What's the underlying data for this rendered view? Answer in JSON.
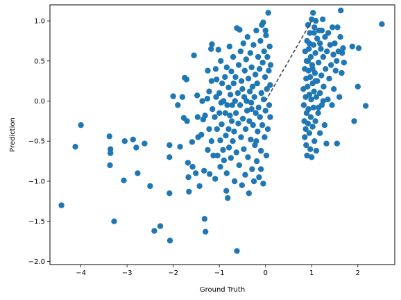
{
  "chart_data": {
    "type": "scatter",
    "title": "",
    "xlabel": "Ground Truth",
    "ylabel": "Prediction",
    "xlim": [
      -4.67,
      2.8
    ],
    "ylim": [
      -2.04,
      1.2
    ],
    "xticks": [
      -4,
      -3,
      -2,
      -1,
      0,
      1,
      2
    ],
    "yticks": [
      -2.0,
      -1.5,
      -1.0,
      -0.5,
      0.0,
      0.5,
      1.0
    ],
    "xtick_labels": [
      "−4",
      "−3",
      "−2",
      "−1",
      "0",
      "1",
      "2"
    ],
    "ytick_labels": [
      "−2.0",
      "−1.5",
      "−1.0",
      "−0.5",
      "0.0",
      "0.5",
      "1.0"
    ],
    "grid": false,
    "marker_color": "#1f77b4",
    "reference_line": {
      "x": [
        0,
        1
      ],
      "y": [
        0,
        1
      ],
      "style": "dashed",
      "color": "#444444"
    },
    "points": [
      [
        -4.42,
        -1.3
      ],
      [
        -4.12,
        -0.57
      ],
      [
        -4.0,
        -0.3
      ],
      [
        -3.38,
        -0.44
      ],
      [
        -3.36,
        -0.6
      ],
      [
        -3.36,
        -0.65
      ],
      [
        -3.37,
        -0.8
      ],
      [
        -3.28,
        -1.5
      ],
      [
        -3.07,
        -0.99
      ],
      [
        -3.05,
        -0.5
      ],
      [
        -2.87,
        -0.48
      ],
      [
        -2.8,
        -0.58
      ],
      [
        -2.77,
        -0.9
      ],
      [
        -2.62,
        -0.53
      ],
      [
        -2.5,
        -1.06
      ],
      [
        -2.41,
        -1.62
      ],
      [
        -2.28,
        -1.56
      ],
      [
        -2.08,
        -0.55
      ],
      [
        -2.08,
        -0.7
      ],
      [
        -2.08,
        -1.15
      ],
      [
        -2.07,
        -1.74
      ],
      [
        -2.0,
        0.06
      ],
      [
        -1.85,
        -0.57
      ],
      [
        -1.9,
        -0.05
      ],
      [
        -1.8,
        0.05
      ],
      [
        -1.77,
        -0.21
      ],
      [
        -1.75,
        0.29
      ],
      [
        -1.71,
        0.27
      ],
      [
        -1.7,
        -0.25
      ],
      [
        -1.68,
        -0.77
      ],
      [
        -1.67,
        -0.95
      ],
      [
        -1.66,
        -1.13
      ],
      [
        -1.59,
        -0.51
      ],
      [
        -1.58,
        -0.82
      ],
      [
        -1.55,
        0.57
      ],
      [
        -1.51,
        -0.9
      ],
      [
        -1.48,
        0.07
      ],
      [
        -1.47,
        -0.2
      ],
      [
        -1.46,
        -0.45
      ],
      [
        -1.43,
        -1.06
      ],
      [
        -1.39,
        -0.42
      ],
      [
        -1.37,
        0.0
      ],
      [
        -1.35,
        -0.23
      ],
      [
        -1.33,
        -0.87
      ],
      [
        -1.32,
        -1.47
      ],
      [
        -1.31,
        -0.18
      ],
      [
        -1.3,
        -1.63
      ],
      [
        -1.26,
        0.03
      ],
      [
        -1.25,
        0.38
      ],
      [
        -1.25,
        -0.61
      ],
      [
        -1.22,
        0.12
      ],
      [
        -1.22,
        -0.35
      ],
      [
        -1.21,
        -0.91
      ],
      [
        -1.18,
        0.65
      ],
      [
        -1.17,
        0.25
      ],
      [
        -1.17,
        -0.5
      ],
      [
        -1.16,
        0.71
      ],
      [
        -1.15,
        -0.1
      ],
      [
        -1.13,
        -0.68
      ],
      [
        -1.1,
        -0.2
      ],
      [
        -1.09,
        -0.97
      ],
      [
        -1.08,
        0.4
      ],
      [
        -1.07,
        0.05
      ],
      [
        -1.06,
        0.27
      ],
      [
        -1.05,
        -0.35
      ],
      [
        -1.04,
        -0.68
      ],
      [
        -1.02,
        0.64
      ],
      [
        -1.0,
        0.1
      ],
      [
        -1.0,
        -0.15
      ],
      [
        -0.98,
        -0.49
      ],
      [
        -0.98,
        -0.82
      ],
      [
        -0.97,
        0.5
      ],
      [
        -0.96,
        -0.02
      ],
      [
        -0.95,
        -0.29
      ],
      [
        -0.94,
        0.22
      ],
      [
        -0.92,
        -0.61
      ],
      [
        -0.91,
        0.0
      ],
      [
        -0.9,
        -0.74
      ],
      [
        -0.88,
        0.3
      ],
      [
        -0.87,
        -0.15
      ],
      [
        -0.86,
        -0.43
      ],
      [
        -0.85,
        -1.12
      ],
      [
        -0.84,
        0.42
      ],
      [
        -0.84,
        -0.9
      ],
      [
        -0.83,
        -0.05
      ],
      [
        -0.82,
        -1.21
      ],
      [
        -0.8,
        0.17
      ],
      [
        -0.8,
        -0.35
      ],
      [
        -0.79,
        -0.58
      ],
      [
        -0.78,
        0.68
      ],
      [
        -0.77,
        -0.18
      ],
      [
        -0.76,
        0.08
      ],
      [
        -0.75,
        -0.71
      ],
      [
        -0.74,
        0.37
      ],
      [
        -0.73,
        -0.25
      ],
      [
        -0.72,
        -0.05
      ],
      [
        -0.71,
        -0.5
      ],
      [
        -0.7,
        0.55
      ],
      [
        -0.69,
        0.22
      ],
      [
        -0.68,
        -0.38
      ],
      [
        -0.67,
        -1.0
      ],
      [
        -0.66,
        0.0
      ],
      [
        -0.65,
        0.3
      ],
      [
        -0.64,
        -0.15
      ],
      [
        -0.63,
        -0.64
      ],
      [
        -0.62,
        0.91
      ],
      [
        -0.62,
        -1.87
      ],
      [
        -0.6,
        0.1
      ],
      [
        -0.59,
        -0.28
      ],
      [
        -0.58,
        0.45
      ],
      [
        -0.57,
        -0.8
      ],
      [
        -0.56,
        0.89
      ],
      [
        -0.55,
        -0.05
      ],
      [
        -0.54,
        0.62
      ],
      [
        -0.53,
        -0.45
      ],
      [
        -0.52,
        0.25
      ],
      [
        -0.51,
        -1.05
      ],
      [
        -0.5,
        0.15
      ],
      [
        -0.49,
        -0.22
      ],
      [
        -0.48,
        0.72
      ],
      [
        -0.47,
        -0.6
      ],
      [
        -0.46,
        0.05
      ],
      [
        -0.45,
        0.38
      ],
      [
        -0.44,
        -0.92
      ],
      [
        -0.43,
        -0.35
      ],
      [
        -0.42,
        0.52
      ],
      [
        -0.41,
        0.0
      ],
      [
        -0.4,
        -0.12
      ],
      [
        -0.39,
        0.8
      ],
      [
        -0.38,
        -0.7
      ],
      [
        -0.37,
        0.28
      ],
      [
        -0.36,
        -1.15
      ],
      [
        -0.35,
        -0.25
      ],
      [
        -0.34,
        0.12
      ],
      [
        -0.33,
        0.6
      ],
      [
        -0.32,
        -0.48
      ],
      [
        -0.31,
        -0.02
      ],
      [
        -0.3,
        0.42
      ],
      [
        -0.29,
        -0.85
      ],
      [
        -0.28,
        0.18
      ],
      [
        -0.27,
        -0.3
      ],
      [
        -0.26,
        0.7
      ],
      [
        -0.25,
        -1.0
      ],
      [
        -0.24,
        0.05
      ],
      [
        -0.23,
        -0.55
      ],
      [
        -0.22,
        0.33
      ],
      [
        -0.21,
        -0.15
      ],
      [
        -0.2,
        0.88
      ],
      [
        -0.19,
        -0.75
      ],
      [
        -0.18,
        0.22
      ],
      [
        -0.17,
        -0.38
      ],
      [
        -0.16,
        0.55
      ],
      [
        -0.15,
        -0.08
      ],
      [
        -0.14,
        -0.95
      ],
      [
        -0.13,
        0.4
      ],
      [
        -0.12,
        -0.2
      ],
      [
        -0.11,
        0.75
      ],
      [
        -0.1,
        -0.62
      ],
      [
        -0.09,
        0.1
      ],
      [
        -0.08,
        0.95
      ],
      [
        -0.07,
        -0.3
      ],
      [
        -0.06,
        0.48
      ],
      [
        -0.05,
        -1.03
      ],
      [
        -0.04,
        0.02
      ],
      [
        -0.03,
        0.62
      ],
      [
        -0.02,
        -0.45
      ],
      [
        -0.01,
        0.3
      ],
      [
        0.0,
        -0.12
      ],
      [
        0.01,
        0.82
      ],
      [
        0.02,
        -0.68
      ],
      [
        0.03,
        0.15
      ],
      [
        0.04,
        0.55
      ],
      [
        0.05,
        -0.35
      ],
      [
        0.06,
        1.1
      ],
      [
        0.07,
        0.38
      ],
      [
        0.08,
        -0.05
      ],
      [
        0.09,
        0.68
      ],
      [
        0.1,
        0.2
      ],
      [
        0.1,
        -0.2
      ],
      [
        0.11,
        0.45
      ],
      [
        -0.05,
        0.98
      ],
      [
        0.0,
        0.88
      ],
      [
        -0.1,
        -0.85
      ],
      [
        -0.2,
        -0.5
      ],
      [
        -0.3,
        -0.1
      ],
      [
        0.82,
        0.15
      ],
      [
        0.83,
        -0.05
      ],
      [
        0.84,
        -0.25
      ],
      [
        0.85,
        0.4
      ],
      [
        0.85,
        -0.45
      ],
      [
        0.86,
        0.62
      ],
      [
        0.87,
        0.05
      ],
      [
        0.87,
        -0.35
      ],
      [
        0.88,
        0.28
      ],
      [
        0.88,
        -0.55
      ],
      [
        0.89,
        0.5
      ],
      [
        0.89,
        -0.15
      ],
      [
        0.9,
        0.75
      ],
      [
        0.9,
        -0.68
      ],
      [
        0.91,
        0.18
      ],
      [
        0.92,
        -0.28
      ],
      [
        0.92,
        0.95
      ],
      [
        0.93,
        0.38
      ],
      [
        0.93,
        -0.1
      ],
      [
        0.94,
        0.65
      ],
      [
        0.95,
        -0.4
      ],
      [
        0.95,
        0.08
      ],
      [
        0.96,
        0.85
      ],
      [
        0.97,
        0.3
      ],
      [
        0.97,
        -0.6
      ],
      [
        0.98,
        -0.2
      ],
      [
        0.98,
        0.55
      ],
      [
        0.99,
        0.02
      ],
      [
        1.0,
        1.02
      ],
      [
        1.0,
        -0.7
      ],
      [
        1.01,
        0.45
      ],
      [
        1.02,
        -0.32
      ],
      [
        1.02,
        0.22
      ],
      [
        1.03,
        1.1
      ],
      [
        1.04,
        0.7
      ],
      [
        1.04,
        -0.08
      ],
      [
        1.05,
        0.12
      ],
      [
        1.06,
        -0.5
      ],
      [
        1.06,
        0.92
      ],
      [
        1.07,
        0.35
      ],
      [
        1.08,
        -0.25
      ],
      [
        1.08,
        0.6
      ],
      [
        1.09,
        1.0
      ],
      [
        1.1,
        0.05
      ],
      [
        1.1,
        -0.62
      ],
      [
        1.12,
        0.78
      ],
      [
        1.12,
        0.25
      ],
      [
        1.14,
        -0.15
      ],
      [
        1.15,
        0.48
      ],
      [
        1.16,
        0.88
      ],
      [
        1.18,
        -0.4
      ],
      [
        1.18,
        0.1
      ],
      [
        1.2,
        0.65
      ],
      [
        1.21,
        0.32
      ],
      [
        1.22,
        -0.05
      ],
      [
        1.24,
        1.02
      ],
      [
        1.25,
        0.55
      ],
      [
        1.26,
        0.18
      ],
      [
        1.28,
        -0.3
      ],
      [
        1.29,
        0.8
      ],
      [
        1.3,
        0.4
      ],
      [
        1.32,
        -0.53
      ],
      [
        1.33,
        0.62
      ],
      [
        1.35,
        0.02
      ],
      [
        1.36,
        0.85
      ],
      [
        1.38,
        0.28
      ],
      [
        1.4,
        0.7
      ],
      [
        1.42,
        0.45
      ],
      [
        1.44,
        -0.05
      ],
      [
        1.45,
        0.92
      ],
      [
        1.47,
        0.58
      ],
      [
        1.48,
        0.15
      ],
      [
        1.5,
        0.72
      ],
      [
        1.52,
        0.38
      ],
      [
        1.54,
        0.5
      ],
      [
        1.55,
        -0.53
      ],
      [
        1.56,
        0.92
      ],
      [
        1.58,
        0.62
      ],
      [
        1.6,
        0.05
      ],
      [
        1.62,
        0.8
      ],
      [
        1.63,
        1.13
      ],
      [
        1.65,
        0.35
      ],
      [
        1.66,
        0.6
      ],
      [
        1.68,
        0.66
      ],
      [
        1.7,
        0.48
      ],
      [
        1.88,
        0.68
      ],
      [
        1.92,
        -0.25
      ],
      [
        2.0,
        0.18
      ],
      [
        2.02,
        0.66
      ],
      [
        2.17,
        -0.06
      ],
      [
        2.52,
        0.96
      ],
      [
        1.18,
        0.72
      ],
      [
        1.22,
        0.88
      ],
      [
        1.05,
        0.85
      ],
      [
        0.95,
        0.72
      ],
      [
        1.15,
        -0.08
      ],
      [
        1.25,
        0.0
      ],
      [
        0.92,
        0.5
      ],
      [
        1.02,
        0.4
      ],
      [
        1.08,
        0.25
      ]
    ]
  }
}
